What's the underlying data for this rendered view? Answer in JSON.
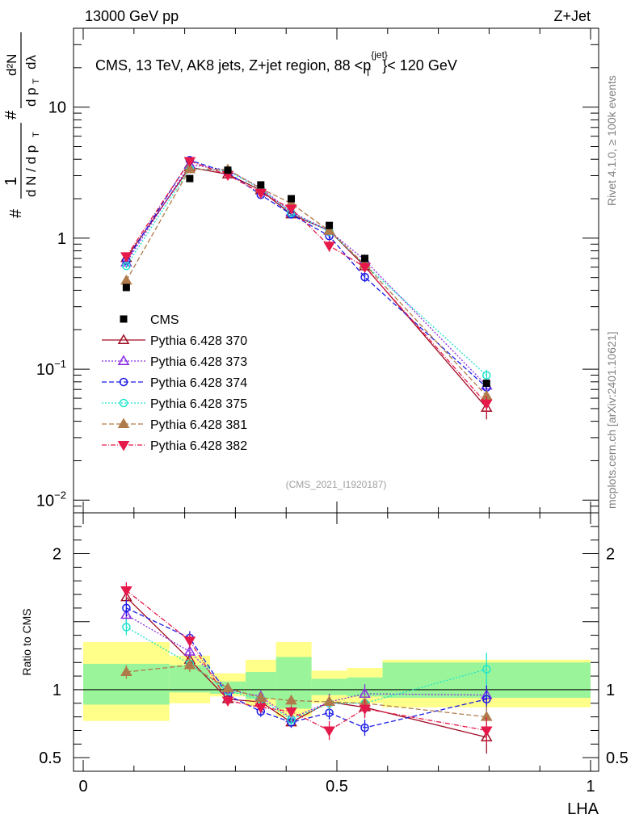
{
  "header": {
    "left": "13000 GeV pp",
    "right": "Z+Jet"
  },
  "side_labels": {
    "rivet": "Rivet 4.1.0, ≥ 100k events",
    "mcplots": "mcplots.cern.ch [arXiv:2401.10621]"
  },
  "main_title": {
    "prefix": "CMS, 13 TeV, AK8 jets, Z+jet region, 88 <p",
    "sup": "{jet}",
    "sub": "T",
    "suffix": "}< 120 GeV"
  },
  "watermark": "(CMS_2021_I1920187)",
  "ylabel_main": {
    "hash": "#",
    "one": "1",
    "dN_dpT": "d N / d p",
    "T1": "T",
    "hash2": "#",
    "dpT": "d p",
    "T2": "T",
    "d2N": "d²N",
    "dlambda": "dλ"
  },
  "ylabel_ratio": "Ratio to CMS",
  "xlabel": "LHA",
  "colors": {
    "cms": "#000000",
    "s370": "#a00d25",
    "s373": "#8a2be2",
    "s374": "#1a1ae6",
    "s375": "#1ee3cc",
    "s381": "#b07b4a",
    "s382": "#e6194b",
    "band_outer": "#ffff8a",
    "band_inner": "#9af59a"
  },
  "chart_data": {
    "type": "line",
    "title": "CMS, 13 TeV, AK8 jets, Z+jet region, 88 <pT{jet}< 120 GeV",
    "xlabel": "LHA",
    "xlim": [
      0,
      1
    ],
    "ylim_main": [
      0.008,
      40
    ],
    "ylim_ratio": [
      0.4,
      2.3
    ],
    "yscale_main": "log",
    "main_yticks": [
      {
        "v": 0.01,
        "base": "10",
        "exp": "−2"
      },
      {
        "v": 0.1,
        "base": "10",
        "exp": "−1"
      },
      {
        "v": 1,
        "base": "1",
        "exp": ""
      },
      {
        "v": 10,
        "base": "10",
        "exp": ""
      }
    ],
    "ratio_yticks": [
      {
        "v": 0.5,
        "label": "0.5"
      },
      {
        "v": 1,
        "label": "1"
      },
      {
        "v": 2,
        "label": "2"
      }
    ],
    "xticks": [
      {
        "v": 0,
        "label": "0"
      },
      {
        "v": 0.5,
        "label": "0.5"
      },
      {
        "v": 1,
        "label": "1"
      }
    ],
    "bins": [
      {
        "lo": 0.0,
        "hi": 0.17,
        "x": 0.085
      },
      {
        "lo": 0.17,
        "hi": 0.25,
        "x": 0.21
      },
      {
        "lo": 0.25,
        "hi": 0.32,
        "x": 0.285
      },
      {
        "lo": 0.32,
        "hi": 0.38,
        "x": 0.35
      },
      {
        "lo": 0.38,
        "hi": 0.45,
        "x": 0.41
      },
      {
        "lo": 0.45,
        "hi": 0.52,
        "x": 0.485
      },
      {
        "lo": 0.52,
        "hi": 0.59,
        "x": 0.555
      },
      {
        "lo": 0.59,
        "hi": 1.0,
        "x": 0.795
      }
    ],
    "cms": {
      "name": "CMS",
      "values": [
        0.42,
        2.85,
        3.3,
        2.55,
        2.0,
        1.25,
        0.7,
        0.078
      ]
    },
    "bands": {
      "outer": [
        [
          0.77,
          1.35
        ],
        [
          0.9,
          1.25
        ],
        [
          0.95,
          1.12
        ],
        [
          0.88,
          1.22
        ],
        [
          0.8,
          1.35
        ],
        [
          0.9,
          1.14
        ],
        [
          0.9,
          1.16
        ],
        [
          0.87,
          1.22
        ]
      ],
      "inner": [
        [
          0.89,
          1.19
        ],
        [
          0.98,
          1.18
        ],
        [
          0.97,
          1.06
        ],
        [
          0.93,
          1.13
        ],
        [
          0.86,
          1.24
        ],
        [
          0.96,
          1.08
        ],
        [
          0.95,
          1.09
        ],
        [
          0.94,
          1.2
        ]
      ]
    },
    "series": [
      {
        "name": "Pythia 6.428 370",
        "legend": "Pythia 6.428 370",
        "color_key": "s370",
        "marker": "tri-up-open",
        "dash": "",
        "ratio": [
          1.68,
          1.22,
          0.93,
          0.91,
          0.76,
          0.91,
          0.87,
          0.65
        ],
        "err": [
          0.06,
          0.05,
          0.04,
          0.04,
          0.04,
          0.06,
          0.07,
          0.12
        ]
      },
      {
        "name": "Pythia 6.428 373",
        "legend": "Pythia 6.428 373",
        "color_key": "s373",
        "marker": "tri-up-open",
        "dash": "2,2",
        "ratio": [
          1.55,
          1.28,
          1.0,
          0.95,
          0.79,
          0.91,
          0.97,
          0.96
        ],
        "err": [
          0.06,
          0.05,
          0.04,
          0.04,
          0.04,
          0.06,
          0.07,
          0.1
        ]
      },
      {
        "name": "Pythia 6.428 374",
        "legend": "Pythia 6.428 374",
        "color_key": "s374",
        "marker": "circle-open",
        "dash": "6,3",
        "ratio": [
          1.6,
          1.38,
          0.96,
          0.84,
          0.76,
          0.83,
          0.72,
          0.93
        ],
        "err": [
          0.06,
          0.05,
          0.04,
          0.04,
          0.04,
          0.05,
          0.06,
          0.1
        ]
      },
      {
        "name": "Pythia 6.428 375",
        "legend": "Pythia 6.428 375",
        "color_key": "s375",
        "marker": "circle-open",
        "dash": "2,2",
        "ratio": [
          1.46,
          1.19,
          0.99,
          0.93,
          0.78,
          0.9,
          0.9,
          1.15
        ],
        "err": [
          0.06,
          0.05,
          0.04,
          0.04,
          0.04,
          0.05,
          0.06,
          0.12
        ]
      },
      {
        "name": "Pythia 6.428 381",
        "legend": "Pythia 6.428 381",
        "color_key": "s381",
        "marker": "tri-up-filled",
        "dash": "6,3",
        "ratio": [
          1.13,
          1.18,
          1.01,
          0.94,
          0.92,
          0.91,
          0.9,
          0.8
        ],
        "err": [
          0.05,
          0.05,
          0.04,
          0.04,
          0.04,
          0.05,
          0.06,
          0.08
        ]
      },
      {
        "name": "Pythia 6.428 382",
        "legend": "Pythia 6.428 382",
        "color_key": "s382",
        "marker": "tri-down-filled",
        "dash": "6,2,1,2",
        "ratio": [
          1.73,
          1.36,
          0.92,
          0.87,
          0.84,
          0.7,
          0.86,
          0.7
        ],
        "err": [
          0.06,
          0.05,
          0.04,
          0.04,
          0.04,
          0.07,
          0.07,
          0.1
        ]
      }
    ]
  }
}
